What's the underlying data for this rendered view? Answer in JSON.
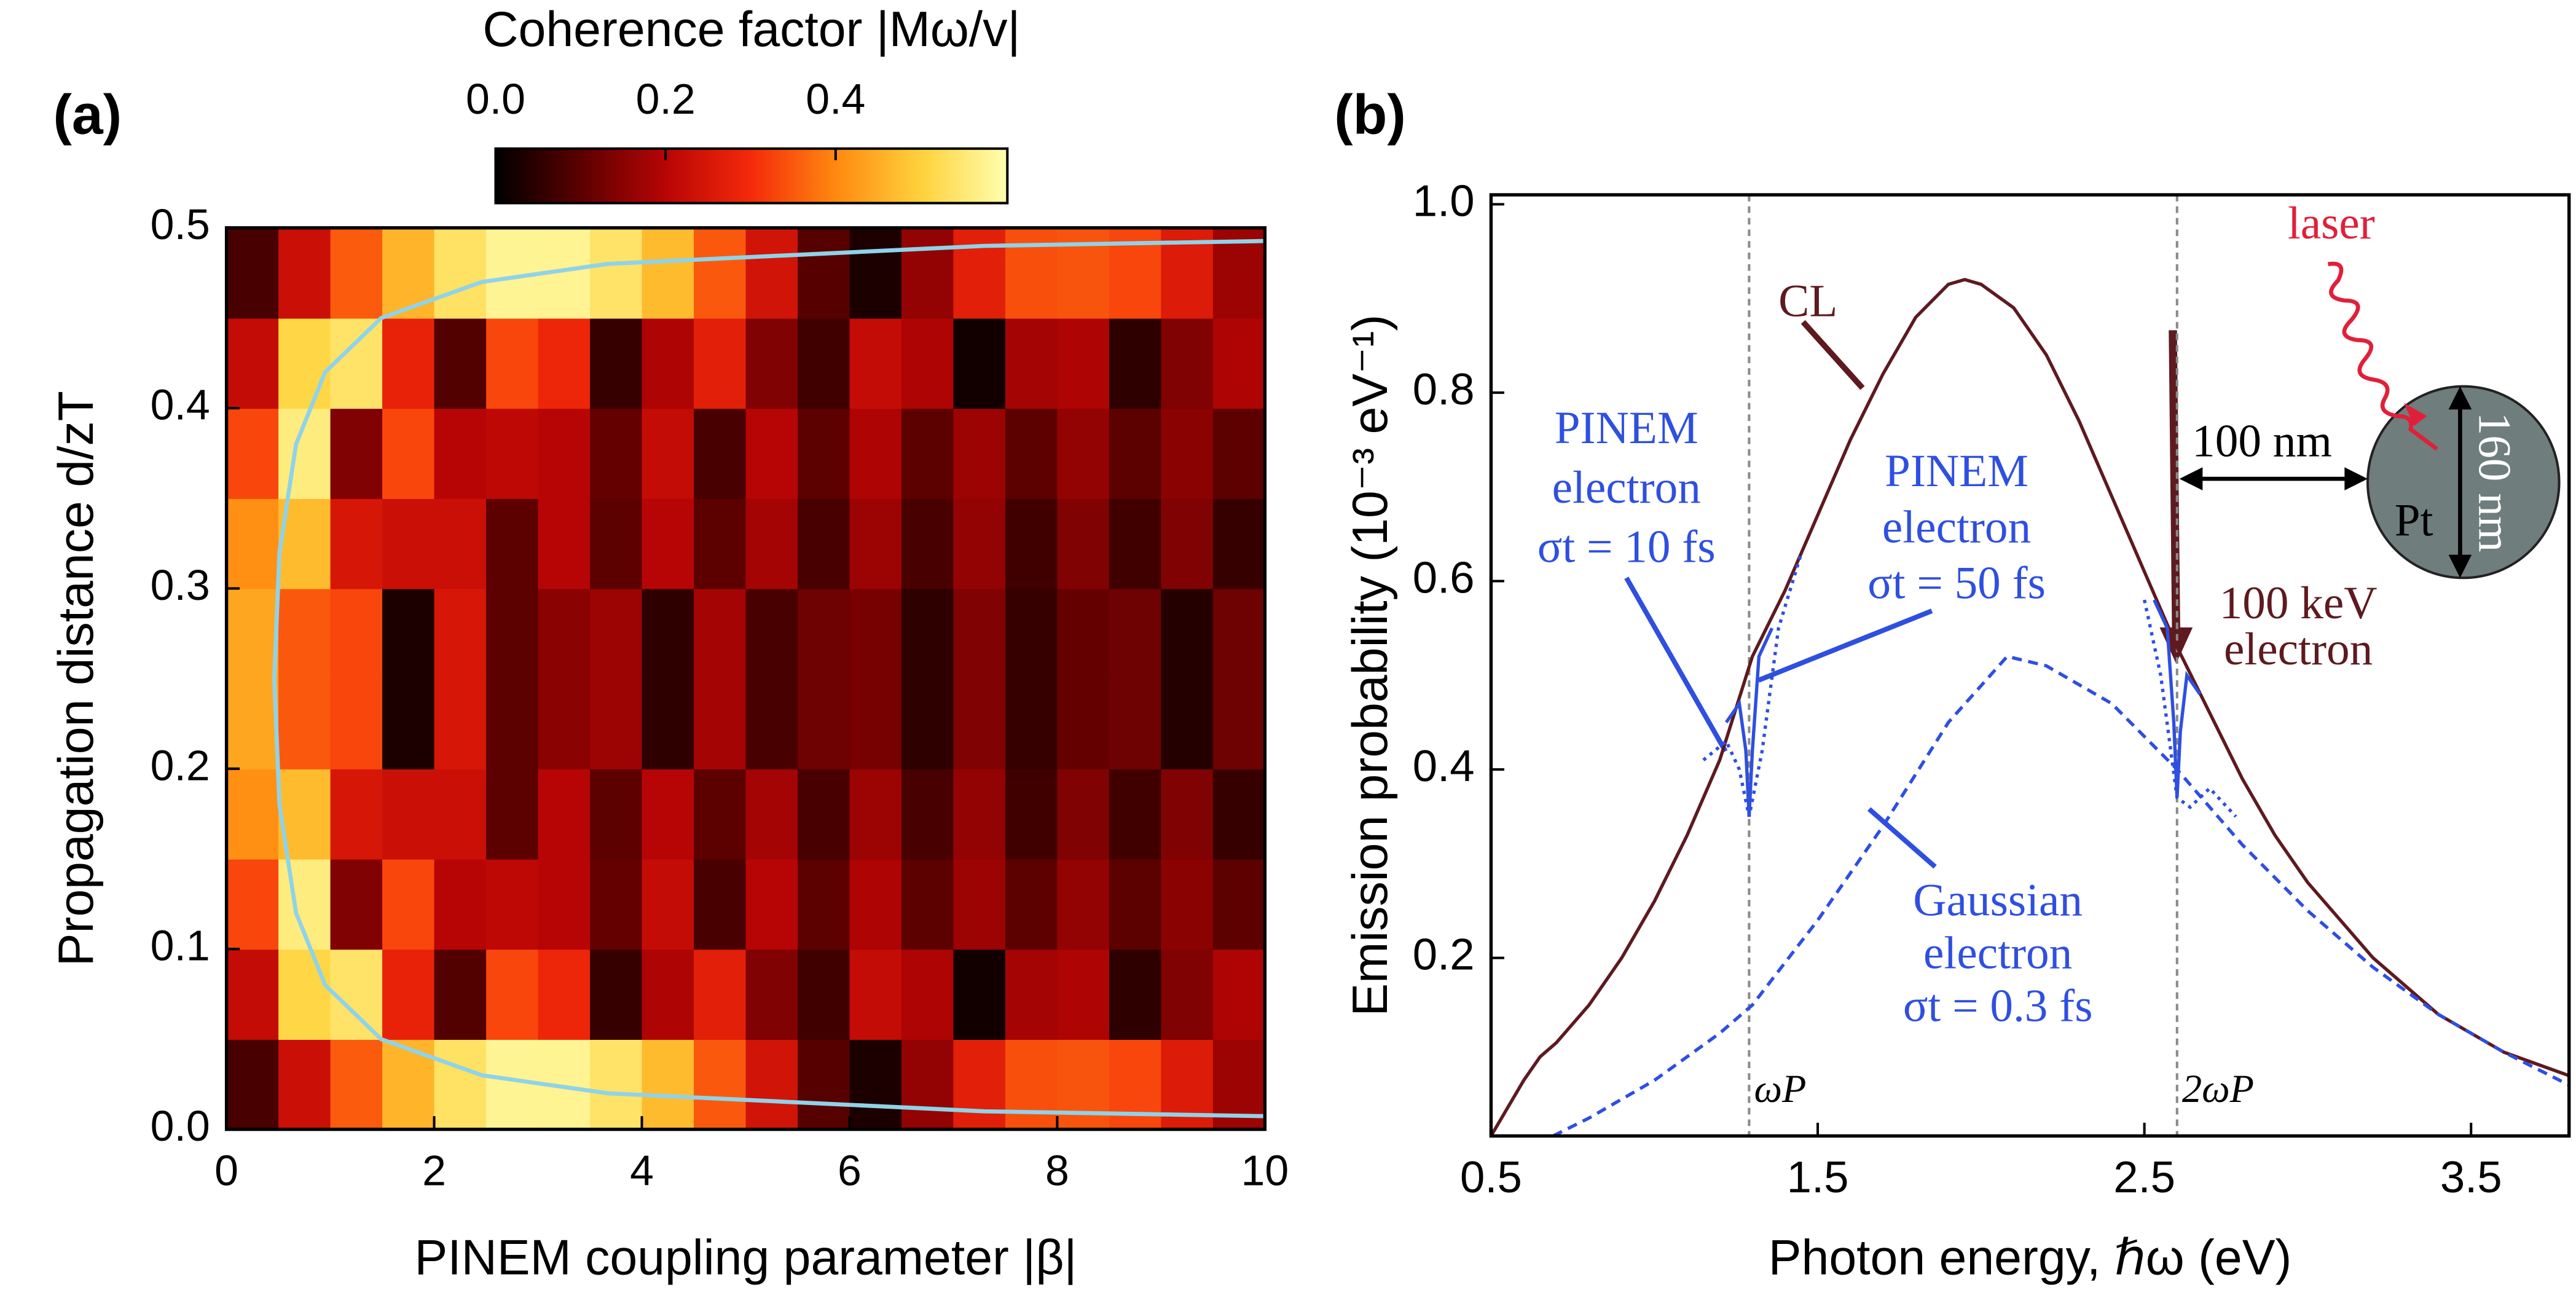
{
  "chart_data": [
    {
      "type": "heatmap",
      "panel_label": "(a)",
      "x_label": "PINEM coupling parameter |β|",
      "y_label": "Propagation distance d/zT",
      "xlim": [
        0,
        10
      ],
      "ylim": [
        0,
        0.5
      ],
      "xticks": [
        0,
        2,
        4,
        6,
        8,
        10
      ],
      "yticks": [
        {
          "value": 0,
          "label": "0.0"
        },
        0.1,
        0.2,
        0.3,
        0.4,
        0.5
      ],
      "x": [
        0.25,
        0.75,
        1.25,
        1.75,
        2.25,
        2.75,
        3.25,
        3.75,
        4.25,
        4.75,
        5.25,
        5.75,
        6.25,
        6.75,
        7.25,
        7.75,
        8.25,
        8.75,
        9.25,
        9.75
      ],
      "y": [
        0.025,
        0.075,
        0.125,
        0.175,
        0.225,
        0.275,
        0.325,
        0.375,
        0.425,
        0.475
      ],
      "z": [
        [
          0.078,
          0.228,
          0.352,
          0.46,
          0.535,
          0.578,
          0.576,
          0.54,
          0.47,
          0.35,
          0.24,
          0.095,
          0.03,
          0.16,
          0.27,
          0.34,
          0.345,
          0.33,
          0.26,
          0.17
        ],
        [
          0.22,
          0.51,
          0.54,
          0.28,
          0.09,
          0.33,
          0.29,
          0.06,
          0.19,
          0.27,
          0.14,
          0.07,
          0.22,
          0.19,
          0.02,
          0.18,
          0.19,
          0.05,
          0.14,
          0.19
        ],
        [
          0.33,
          0.56,
          0.14,
          0.33,
          0.2,
          0.21,
          0.2,
          0.11,
          0.22,
          0.08,
          0.2,
          0.1,
          0.19,
          0.1,
          0.17,
          0.1,
          0.16,
          0.1,
          0.15,
          0.1
        ],
        [
          0.41,
          0.47,
          0.25,
          0.23,
          0.23,
          0.1,
          0.2,
          0.1,
          0.2,
          0.1,
          0.18,
          0.08,
          0.17,
          0.08,
          0.16,
          0.07,
          0.14,
          0.07,
          0.14,
          0.06
        ],
        [
          0.44,
          0.35,
          0.33,
          0.03,
          0.25,
          0.1,
          0.15,
          0.17,
          0.05,
          0.18,
          0.08,
          0.12,
          0.13,
          0.05,
          0.14,
          0.06,
          0.11,
          0.12,
          0.04,
          0.12
        ],
        [
          0.44,
          0.35,
          0.33,
          0.03,
          0.25,
          0.1,
          0.15,
          0.17,
          0.05,
          0.18,
          0.08,
          0.12,
          0.13,
          0.05,
          0.14,
          0.06,
          0.11,
          0.12,
          0.04,
          0.12
        ],
        [
          0.41,
          0.47,
          0.25,
          0.23,
          0.23,
          0.1,
          0.2,
          0.1,
          0.2,
          0.1,
          0.18,
          0.08,
          0.17,
          0.08,
          0.16,
          0.07,
          0.14,
          0.07,
          0.14,
          0.06
        ],
        [
          0.33,
          0.56,
          0.14,
          0.33,
          0.2,
          0.21,
          0.2,
          0.11,
          0.22,
          0.08,
          0.2,
          0.1,
          0.19,
          0.1,
          0.17,
          0.1,
          0.16,
          0.1,
          0.15,
          0.1
        ],
        [
          0.22,
          0.51,
          0.54,
          0.28,
          0.09,
          0.33,
          0.29,
          0.06,
          0.19,
          0.27,
          0.14,
          0.07,
          0.22,
          0.19,
          0.02,
          0.18,
          0.19,
          0.05,
          0.14,
          0.19
        ],
        [
          0.078,
          0.228,
          0.352,
          0.46,
          0.535,
          0.578,
          0.576,
          0.54,
          0.47,
          0.35,
          0.24,
          0.095,
          0.03,
          0.16,
          0.27,
          0.34,
          0.345,
          0.33,
          0.26,
          0.17
        ]
      ],
      "colorbar": {
        "label": "Coherence factor |Mω/v|",
        "lim": [
          0,
          0.602
        ],
        "ticks": [
          {
            "value": 0,
            "label": "0.0"
          },
          0.2,
          0.4
        ],
        "colormap": [
          "#000000",
          "#5c0000",
          "#b80505",
          "#f52a0a",
          "#ff8a10",
          "#ffd23c",
          "#ffffb0"
        ]
      },
      "contour": {
        "color": "#8fd3e8",
        "x": [
          10,
          7.3,
          3.67,
          2.46,
          1.49,
          0.95,
          0.67,
          0.51,
          0.46,
          0.51,
          0.67,
          0.95,
          1.49,
          2.46,
          3.67,
          7.3,
          10
        ],
        "y": [
          0.0073,
          0.01,
          0.02,
          0.03,
          0.05,
          0.08,
          0.12,
          0.18,
          0.25,
          0.32,
          0.38,
          0.42,
          0.45,
          0.47,
          0.48,
          0.49,
          0.4927
        ]
      }
    },
    {
      "type": "line",
      "panel_label": "(b)",
      "x_label": "Photon energy, ℏω (eV)",
      "y_label": "Emission probability (10⁻³ eV⁻¹)",
      "xlim": [
        0.5,
        3.8
      ],
      "ylim": [
        0.011,
        1.01
      ],
      "xticks": [
        0.5,
        1.5,
        2.5,
        3.5
      ],
      "yticks": [
        0.2,
        0.4,
        0.6,
        0.8,
        {
          "value": 1,
          "label": "1.0"
        }
      ],
      "series": [
        {
          "color": "#5e1a1f",
          "style": "solid",
          "x": [
            0.5,
            0.6,
            0.65,
            0.7,
            0.8,
            0.9,
            1.0,
            1.1,
            1.2,
            1.3,
            1.4,
            1.5,
            1.6,
            1.7,
            1.8,
            1.9,
            1.95,
            2.0,
            2.1,
            2.2,
            2.3,
            2.4,
            2.5,
            2.6,
            2.7,
            2.8,
            2.9,
            3.0,
            3.2,
            3.4,
            3.6,
            3.8
          ],
          "values": [
            0.011,
            0.07,
            0.095,
            0.11,
            0.15,
            0.2,
            0.26,
            0.33,
            0.41,
            0.52,
            0.59,
            0.67,
            0.75,
            0.82,
            0.88,
            0.915,
            0.92,
            0.915,
            0.89,
            0.84,
            0.77,
            0.69,
            0.61,
            0.53,
            0.46,
            0.39,
            0.33,
            0.28,
            0.2,
            0.14,
            0.1,
            0.075
          ]
        },
        {
          "color": "#2f4fe0",
          "style": "dashed",
          "x": [
            0.69,
            0.8,
            1.0,
            1.2,
            1.3,
            1.5,
            1.7,
            1.9,
            2.08,
            2.2,
            2.4,
            2.6,
            2.8,
            3.0,
            3.2,
            3.4,
            3.6,
            3.8
          ],
          "values": [
            0.011,
            0.03,
            0.07,
            0.12,
            0.15,
            0.24,
            0.34,
            0.45,
            0.52,
            0.51,
            0.47,
            0.4,
            0.32,
            0.25,
            0.19,
            0.14,
            0.1,
            0.065
          ]
        },
        {
          "color": "#2f4fe0",
          "style": "solid",
          "x": [
            1.22,
            1.26,
            1.28,
            1.29,
            1.3,
            1.32,
            1.36,
            1.9,
            2.53,
            2.57,
            2.59,
            2.6,
            2.61,
            2.63,
            2.67
          ],
          "values": [
            0.45,
            0.47,
            0.42,
            0.35,
            0.42,
            0.52,
            0.55,
            null,
            0.58,
            0.55,
            0.45,
            0.37,
            0.44,
            0.5,
            0.48
          ]
        },
        {
          "color": "#2f4fe0",
          "style": "dotted",
          "x": [
            1.15,
            1.22,
            1.26,
            1.29,
            1.33,
            1.38,
            1.45,
            1.9,
            2.5,
            2.55,
            2.6,
            2.64,
            2.7,
            2.78
          ],
          "values": [
            0.41,
            0.43,
            0.4,
            0.35,
            0.42,
            0.55,
            0.63,
            null,
            0.58,
            0.5,
            0.37,
            0.36,
            0.38,
            0.35
          ]
        }
      ],
      "vlines": {
        "x": [
          1.29,
          2.6
        ],
        "labels": [
          "ωP",
          "2ωP"
        ],
        "color": "#8a8a8a"
      },
      "annotations": [
        {
          "lines": [
            "CL"
          ]
        },
        {
          "lines": [
            "PINEM",
            "electron",
            "σt = 10 fs"
          ]
        },
        {
          "lines": [
            "PINEM",
            "electron",
            "σt = 50 fs"
          ]
        },
        {
          "lines": [
            "Gaussian",
            "electron",
            "σt = 0.3 fs"
          ]
        },
        {
          "lines": [
            "laser"
          ]
        },
        {
          "lines": [
            "100 nm"
          ]
        },
        {
          "lines": [
            "160 nm"
          ]
        },
        {
          "lines": [
            "Pt"
          ]
        },
        {
          "lines": [
            "100 keV",
            "electron"
          ]
        }
      ]
    }
  ]
}
